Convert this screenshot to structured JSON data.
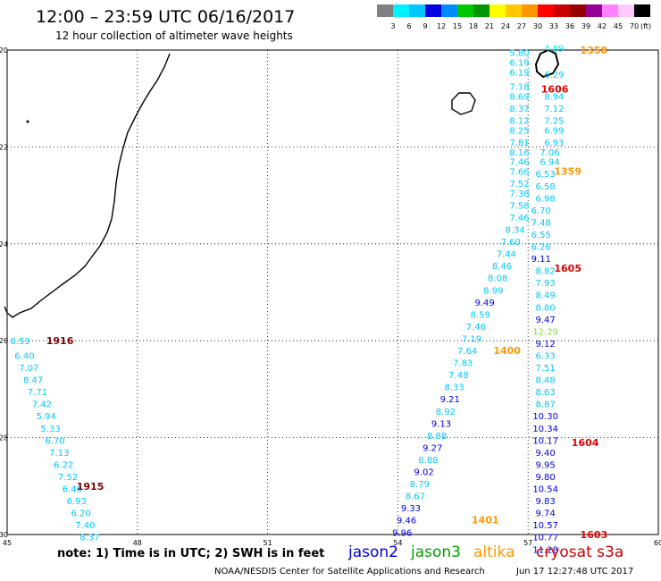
{
  "header": {
    "title": "12:00 – 23:59 UTC 06/16/2017",
    "subtitle": "12 hour collection of altimeter wave heights"
  },
  "colorbar": {
    "unit": "(ft)",
    "colors": [
      "#808080",
      "#00f0ff",
      "#00c8ff",
      "#0000e0",
      "#008cff",
      "#00c800",
      "#009600",
      "#ffff00",
      "#ffc800",
      "#ff9600",
      "#ff0000",
      "#c80000",
      "#960000",
      "#960096",
      "#ff80ff",
      "#ffc8ff",
      "#000000"
    ],
    "labels": [
      "3",
      "6",
      "9",
      "12",
      "15",
      "18",
      "21",
      "24",
      "27",
      "30",
      "33",
      "36",
      "39",
      "42",
      "45",
      "70"
    ]
  },
  "axes": {
    "x_ticks": [
      "45",
      "48",
      "51",
      "54",
      "57",
      "60"
    ],
    "y_ticks": [
      "-20",
      "-22",
      "-24",
      "-26",
      "-28",
      "-30"
    ]
  },
  "time_labels": [
    {
      "text": "1358",
      "color": "#ff9600",
      "lon": 58.2,
      "lat": -20.0
    },
    {
      "text": "1606",
      "color": "#e00000",
      "lon": 57.3,
      "lat": -20.8
    },
    {
      "text": "1359",
      "color": "#ff9600",
      "lon": 57.6,
      "lat": -22.5
    },
    {
      "text": "1605",
      "color": "#e00000",
      "lon": 57.6,
      "lat": -24.5
    },
    {
      "text": "1916",
      "color": "#800000",
      "lon": 45.9,
      "lat": -26.0
    },
    {
      "text": "1400",
      "color": "#ff9600",
      "lon": 56.2,
      "lat": -26.2
    },
    {
      "text": "1604",
      "color": "#e00000",
      "lon": 58.0,
      "lat": -28.1
    },
    {
      "text": "1915",
      "color": "#800000",
      "lon": 46.6,
      "lat": -29.0
    },
    {
      "text": "1401",
      "color": "#ff9600",
      "lon": 55.7,
      "lat": -29.7
    },
    {
      "text": "1603",
      "color": "#e00000",
      "lon": 58.2,
      "lat": -30.0
    }
  ],
  "tracks": [
    {
      "name": "t1",
      "points": [
        [
          "5.80",
          "#00c8ff",
          56.8,
          -20.05
        ],
        [
          "6.19",
          "#00c8ff",
          56.8,
          -20.25
        ],
        [
          "6.19",
          "#00c8ff",
          56.8,
          -20.45
        ],
        [
          "7.18",
          "#00c8ff",
          56.8,
          -20.75
        ],
        [
          "8.69",
          "#00c8ff",
          56.8,
          -20.95
        ],
        [
          "8.37",
          "#00c8ff",
          56.8,
          -21.2
        ],
        [
          "8.12",
          "#00c8ff",
          56.8,
          -21.45
        ],
        [
          "8.25",
          "#00c8ff",
          56.8,
          -21.65
        ],
        [
          "7.81",
          "#00c8ff",
          56.8,
          -21.9
        ],
        [
          "8.16",
          "#00c8ff",
          56.8,
          -22.1
        ],
        [
          "7.46",
          "#00c8ff",
          56.8,
          -22.3
        ],
        [
          "7.66",
          "#00c8ff",
          56.8,
          -22.5
        ],
        [
          "7.52",
          "#00c8ff",
          56.8,
          -22.75
        ],
        [
          "7.38",
          "#00c8ff",
          56.8,
          -22.95
        ],
        [
          "7.58",
          "#00c8ff",
          56.8,
          -23.2
        ],
        [
          "7.46",
          "#00c8ff",
          56.8,
          -23.45
        ],
        [
          "8.34",
          "#00c8ff",
          56.7,
          -23.7
        ],
        [
          "7.60",
          "#00c8ff",
          56.6,
          -23.95
        ],
        [
          "7.44",
          "#00c8ff",
          56.5,
          -24.2
        ],
        [
          "8.46",
          "#00c8ff",
          56.4,
          -24.45
        ],
        [
          "8.08",
          "#00c8ff",
          56.3,
          -24.7
        ],
        [
          "8.99",
          "#00c8ff",
          56.2,
          -24.95
        ],
        [
          "9.49",
          "#0000e0",
          56.0,
          -25.2
        ],
        [
          "8.59",
          "#00c8ff",
          55.9,
          -25.45
        ],
        [
          "7.46",
          "#00c8ff",
          55.8,
          -25.7
        ],
        [
          "7.19",
          "#00c8ff",
          55.7,
          -25.95
        ],
        [
          "7.64",
          "#00c8ff",
          55.6,
          -26.2
        ],
        [
          "7.83",
          "#00c8ff",
          55.5,
          -26.45
        ],
        [
          "7.48",
          "#00c8ff",
          55.4,
          -26.7
        ],
        [
          "8.33",
          "#00c8ff",
          55.3,
          -26.95
        ],
        [
          "9.21",
          "#0000e0",
          55.2,
          -27.2
        ],
        [
          "8.92",
          "#00c8ff",
          55.1,
          -27.45
        ],
        [
          "9.13",
          "#0000e0",
          55.0,
          -27.7
        ],
        [
          "8.88",
          "#00c8ff",
          54.9,
          -27.95
        ],
        [
          "9.27",
          "#0000e0",
          54.8,
          -28.2
        ],
        [
          "8.88",
          "#00c8ff",
          54.7,
          -28.45
        ],
        [
          "9.02",
          "#0000e0",
          54.6,
          -28.7
        ],
        [
          "8.79",
          "#00c8ff",
          54.5,
          -28.95
        ],
        [
          "8.67",
          "#00c8ff",
          54.4,
          -29.2
        ],
        [
          "9.33",
          "#0000e0",
          54.3,
          -29.45
        ],
        [
          "9.46",
          "#0000e0",
          54.2,
          -29.7
        ],
        [
          "9.96",
          "#0000e0",
          54.1,
          -29.95
        ]
      ]
    },
    {
      "name": "t2",
      "points": [
        [
          "4.89",
          "#00f0ff",
          57.6,
          -19.95
        ],
        [
          "6.29",
          "#00c8ff",
          57.6,
          -20.5
        ],
        [
          "8.94",
          "#00c8ff",
          57.6,
          -20.95
        ],
        [
          "7.12",
          "#00c8ff",
          57.6,
          -21.2
        ],
        [
          "7.25",
          "#00c8ff",
          57.6,
          -21.45
        ],
        [
          "6.99",
          "#00c8ff",
          57.6,
          -21.65
        ],
        [
          "6.93",
          "#00c8ff",
          57.6,
          -21.9
        ],
        [
          "7.06",
          "#00c8ff",
          57.5,
          -22.1
        ],
        [
          "6.94",
          "#00c8ff",
          57.5,
          -22.3
        ],
        [
          "6.53",
          "#00c8ff",
          57.4,
          -22.55
        ],
        [
          "6.58",
          "#00c8ff",
          57.4,
          -22.8
        ],
        [
          "6.98",
          "#00c8ff",
          57.4,
          -23.05
        ],
        [
          "6.70",
          "#00c8ff",
          57.3,
          -23.3
        ],
        [
          "7.48",
          "#00c8ff",
          57.3,
          -23.55
        ],
        [
          "6.55",
          "#00c8ff",
          57.3,
          -23.8
        ],
        [
          "6.26",
          "#00c8ff",
          57.3,
          -24.05
        ],
        [
          "9.11",
          "#0000e0",
          57.3,
          -24.3
        ],
        [
          "8.82",
          "#00c8ff",
          57.4,
          -24.55
        ],
        [
          "7.93",
          "#00c8ff",
          57.4,
          -24.8
        ],
        [
          "8.49",
          "#00c8ff",
          57.4,
          -25.05
        ],
        [
          "8.80",
          "#00c8ff",
          57.4,
          -25.3
        ],
        [
          "9.47",
          "#0000e0",
          57.4,
          -25.55
        ],
        [
          "12.29",
          "#7fdf40",
          57.4,
          -25.8
        ],
        [
          "9.12",
          "#0000e0",
          57.4,
          -26.05
        ],
        [
          "6.33",
          "#00c8ff",
          57.4,
          -26.3
        ],
        [
          "7.51",
          "#00c8ff",
          57.4,
          -26.55
        ],
        [
          "8.48",
          "#00c8ff",
          57.4,
          -26.8
        ],
        [
          "8.63",
          "#00c8ff",
          57.4,
          -27.05
        ],
        [
          "8.87",
          "#00c8ff",
          57.4,
          -27.3
        ],
        [
          "10.30",
          "#0000e0",
          57.4,
          -27.55
        ],
        [
          "10.34",
          "#0000e0",
          57.4,
          -27.8
        ],
        [
          "10.17",
          "#0000e0",
          57.4,
          -28.05
        ],
        [
          "9.40",
          "#0000e0",
          57.4,
          -28.3
        ],
        [
          "9.95",
          "#0000e0",
          57.4,
          -28.55
        ],
        [
          "9.80",
          "#0000e0",
          57.4,
          -28.8
        ],
        [
          "10.54",
          "#0000e0",
          57.4,
          -29.05
        ],
        [
          "9.83",
          "#0000e0",
          57.4,
          -29.3
        ],
        [
          "9.74",
          "#0000e0",
          57.4,
          -29.55
        ],
        [
          "10.57",
          "#0000e0",
          57.4,
          -29.8
        ],
        [
          "10.77",
          "#0000e0",
          57.4,
          -30.05
        ],
        [
          "11.28",
          "#0000e0",
          57.4,
          -30.3
        ]
      ]
    },
    {
      "name": "t3",
      "points": [
        [
          "6.53",
          "#00c8ff",
          45.3,
          -26.0
        ],
        [
          "6.40",
          "#00c8ff",
          45.4,
          -26.3
        ],
        [
          "7.07",
          "#00c8ff",
          45.5,
          -26.55
        ],
        [
          "8.47",
          "#00c8ff",
          45.6,
          -26.8
        ],
        [
          "7.71",
          "#00c8ff",
          45.7,
          -27.05
        ],
        [
          "7.42",
          "#00c8ff",
          45.8,
          -27.3
        ],
        [
          "5.94",
          "#00c8ff",
          45.9,
          -27.55
        ],
        [
          "5.33",
          "#00c8ff",
          46.0,
          -27.8
        ],
        [
          "6.70",
          "#00c8ff",
          46.1,
          -28.05
        ],
        [
          "7.13",
          "#00c8ff",
          46.2,
          -28.3
        ],
        [
          "6.22",
          "#00c8ff",
          46.3,
          -28.55
        ],
        [
          "7.52",
          "#00c8ff",
          46.4,
          -28.8
        ],
        [
          "6.48",
          "#00c8ff",
          46.5,
          -29.05
        ],
        [
          "6.93",
          "#00c8ff",
          46.6,
          -29.3
        ],
        [
          "6.20",
          "#00c8ff",
          46.7,
          -29.55
        ],
        [
          "7.40",
          "#00c8ff",
          46.8,
          -29.8
        ],
        [
          "8.37",
          "#00c8ff",
          46.9,
          -30.05
        ]
      ]
    }
  ],
  "legend": [
    {
      "name": "jason2",
      "color": "#0000e0"
    },
    {
      "name": "jason3",
      "color": "#00a000"
    },
    {
      "name": "altika",
      "color": "#ff9600"
    },
    {
      "name": "cryosat s3a",
      "color": "#c80000"
    }
  ],
  "footer": {
    "note": "note:  1) Time is in UTC; 2) SWH is in feet",
    "credit": "NOAA/NESDIS Center for Satellite Applications and Research",
    "generated": "Jun 17 12:27:48 UTC 2017"
  }
}
